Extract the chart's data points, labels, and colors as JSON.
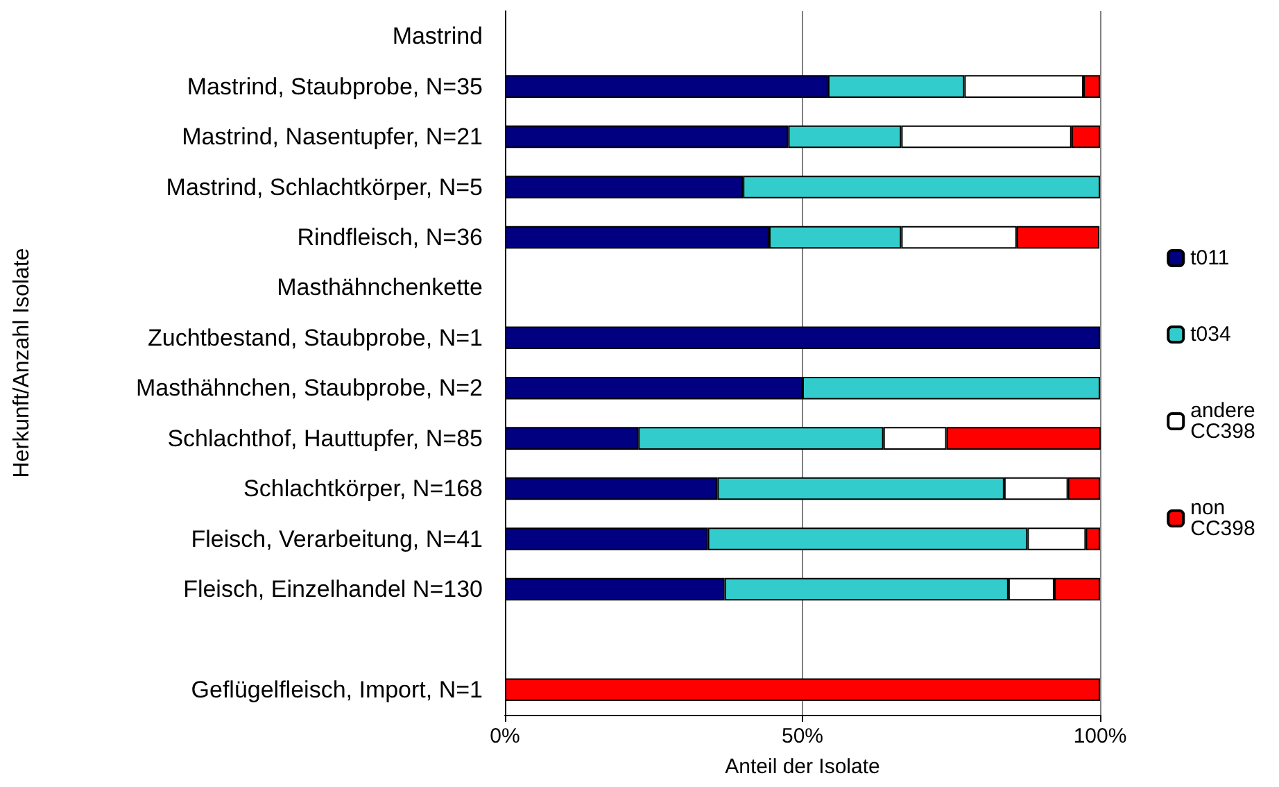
{
  "chart_data": {
    "type": "bar",
    "orientation": "horizontal",
    "stacked": true,
    "xlabel": "Anteil der Isolate",
    "ylabel": "Herkunft/Anzahl Isolate",
    "categories": [
      "Mastrind",
      "Mastrind, Staubprobe, N=35",
      "Mastrind, Nasentupfer, N=21",
      "Mastrind, Schlachtkörper, N=5",
      "Rindfleisch, N=36",
      "Masthähnchenkette",
      "Zuchtbestand, Staubprobe, N=1",
      "Masthähnchen, Staubprobe, N=2",
      "Schlachthof, Hauttupfer, N=85",
      "Schlachtkörper, N=168",
      "Fleisch, Verarbeitung, N=41",
      "Fleisch, Einzelhandel N=130",
      null,
      "Geflügelfleisch, Import, N=1"
    ],
    "series": [
      {
        "name": "t011",
        "color": "#000080",
        "values": [
          null,
          54.3,
          47.6,
          40,
          44.4,
          null,
          100,
          50,
          22.4,
          35.7,
          34.1,
          36.9,
          null,
          0
        ]
      },
      {
        "name": "t034",
        "color": "#33cccc",
        "values": [
          null,
          22.9,
          19.0,
          60,
          22.2,
          null,
          0,
          50,
          41.2,
          48.2,
          53.7,
          47.7,
          null,
          0
        ]
      },
      {
        "name": "andere CC398",
        "color": "#ffffff",
        "values": [
          null,
          20.0,
          28.6,
          0,
          19.4,
          null,
          0,
          0,
          10.6,
          10.7,
          9.8,
          7.7,
          null,
          0
        ]
      },
      {
        "name": "non CC398",
        "color": "#ff0000",
        "values": [
          null,
          2.8,
          4.8,
          0,
          13.9,
          null,
          0,
          0,
          25.9,
          5.4,
          2.4,
          7.7,
          null,
          100
        ]
      }
    ],
    "xlim": [
      0,
      100
    ],
    "xticks": [
      {
        "value": 0,
        "label": "0%"
      },
      {
        "value": 50,
        "label": "50%"
      },
      {
        "value": 100,
        "label": "100%"
      }
    ],
    "grid": "x",
    "legend": "right"
  }
}
